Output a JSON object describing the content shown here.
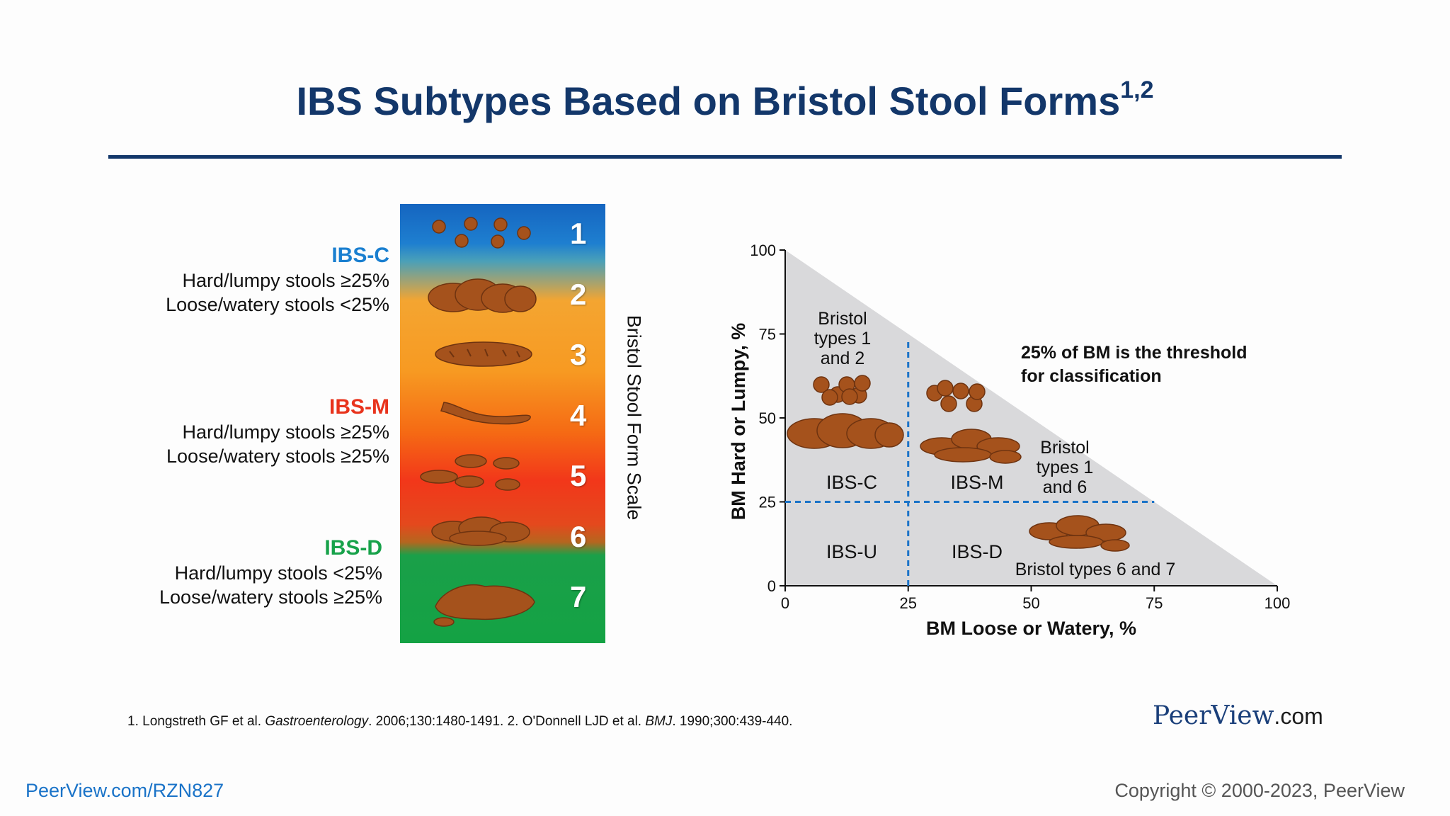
{
  "slide": {
    "title": "IBS Subtypes Based on Bristol Stool Forms",
    "title_superscript": "1,2"
  },
  "subtypes": [
    {
      "name": "IBS-C",
      "color": "#1a7fd0",
      "line1": "Hard/lumpy stools ≥25%",
      "line2": "Loose/watery stools <25%"
    },
    {
      "name": "IBS-M",
      "color": "#e8331c",
      "line1": "Hard/lumpy stools ≥25%",
      "line2": "Loose/watery stools ≥25%"
    },
    {
      "name": "IBS-D",
      "color": "#17a24a",
      "line1": "Hard/lumpy stools <25%",
      "line2": "Loose/watery stools ≥25%"
    }
  ],
  "bristol_scale": {
    "label": "Bristol Stool Form Scale",
    "numbers": [
      "1",
      "2",
      "3",
      "4",
      "5",
      "6",
      "7"
    ],
    "stool_color": "#a5521c"
  },
  "chart_data": {
    "type": "scatter",
    "xlabel": "BM Loose or Watery, %",
    "ylabel": "BM Hard or Lumpy, %",
    "xlim": [
      0,
      100
    ],
    "ylim": [
      0,
      100
    ],
    "x_ticks": [
      "0",
      "25",
      "50",
      "75",
      "100"
    ],
    "y_ticks": [
      "0",
      "25",
      "50",
      "75",
      "100"
    ],
    "region": "x + y ≤ 100",
    "threshold_lines": [
      25,
      25
    ],
    "threshold_color": "#1a73c8",
    "region_color": "#d9d9db",
    "quadrants": [
      {
        "label": "IBS-C",
        "x_range": [
          0,
          25
        ],
        "y_range": [
          25,
          100
        ]
      },
      {
        "label": "IBS-M",
        "x_range": [
          25,
          100
        ],
        "y_range": [
          25,
          100
        ]
      },
      {
        "label": "IBS-U",
        "x_range": [
          0,
          25
        ],
        "y_range": [
          0,
          25
        ]
      },
      {
        "label": "IBS-D",
        "x_range": [
          25,
          100
        ],
        "y_range": [
          0,
          25
        ]
      }
    ],
    "annotations": {
      "bristol_1_2": [
        "Bristol",
        "types 1",
        "and 2"
      ],
      "bristol_1_6": [
        "Bristol",
        "types 1",
        "and 6"
      ],
      "bristol_6_7": "Bristol types 6 and 7",
      "threshold_note": [
        "25% of BM is the threshold",
        "for classification"
      ]
    }
  },
  "footer": {
    "reference_1_pre": "1. Longstreth GF et al. ",
    "reference_1_journal": "Gastroenterology",
    "reference_1_post": ". 2006;130:1480-1491. 2. O'Donnell LJD et al. ",
    "reference_2_journal": "BMJ",
    "reference_2_post": ". 1990;300:439-440.",
    "brand_main": "PeerView",
    "brand_suffix": ".com",
    "url": "PeerView.com/RZN827",
    "copyright": "Copyright © 2000-2023, PeerView"
  }
}
